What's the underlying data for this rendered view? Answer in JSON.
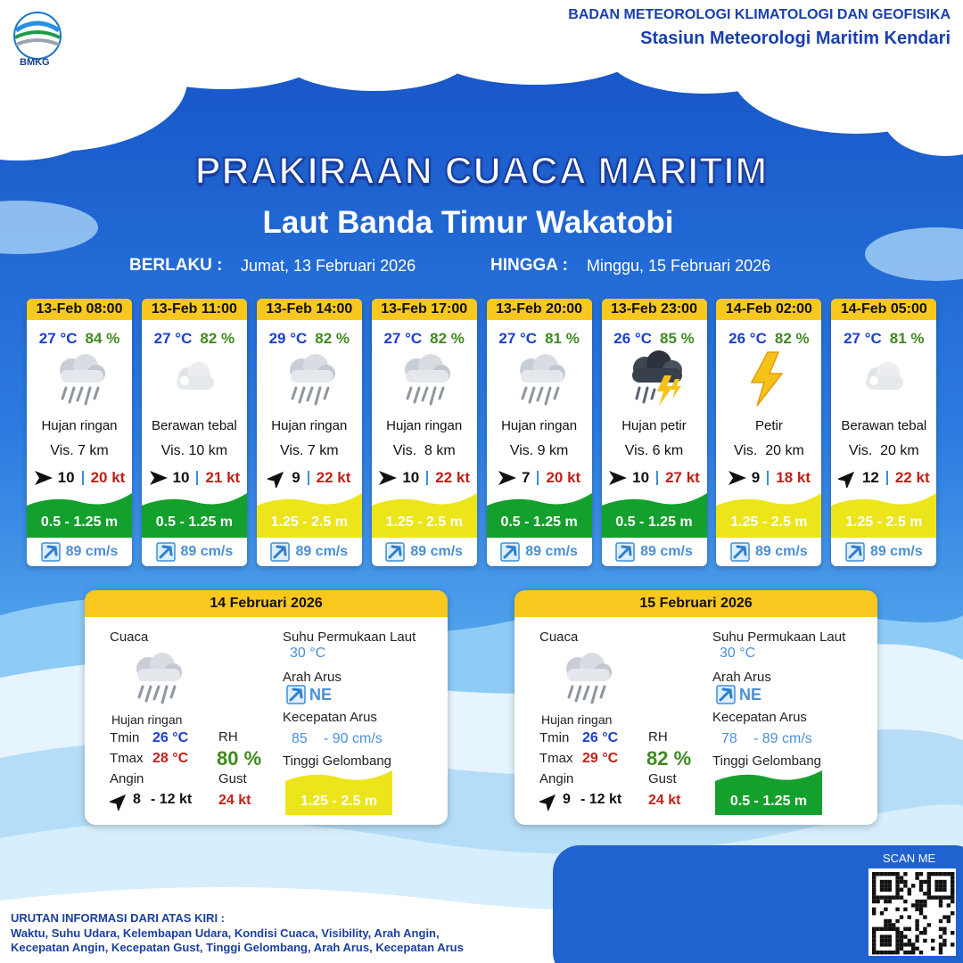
{
  "header": {
    "logo_text": "BMKG",
    "agency": "BADAN METEOROLOGI KLIMATOLOGI DAN GEOFISIKA",
    "station": "Stasiun Meteorologi Maritim Kendari"
  },
  "title": "PRAKIRAAN CUACA MARITIM",
  "subtitle": "Laut Banda Timur Wakatobi",
  "validity": {
    "from_label": "BERLAKU :",
    "from": "Jumat, 13 Februari 2026",
    "to_label": "HINGGA :",
    "to": "Minggu, 15 Februari 2026"
  },
  "forecasts": [
    {
      "time": "13-Feb 08:00",
      "temperature": "27 °C",
      "humidity": "84 %",
      "icon": "rain",
      "condition": "Hujan ringan",
      "visibility": "Vis. 7 km",
      "wind_direction": "E",
      "wind_speed": "10",
      "gust": "20 kt",
      "wave_height": "0.5 - 1.25 m",
      "wave_color": "#14a02c",
      "current_speed": "89 cm/s"
    },
    {
      "time": "13-Feb 11:00",
      "temperature": "27 °C",
      "humidity": "82 %",
      "icon": "cloud",
      "condition": "Berawan tebal",
      "visibility": "Vis. 10 km",
      "wind_direction": "E",
      "wind_speed": "10",
      "gust": "21 kt",
      "wave_height": "0.5 - 1.25 m",
      "wave_color": "#14a02c",
      "current_speed": "89 cm/s"
    },
    {
      "time": "13-Feb 14:00",
      "temperature": "29 °C",
      "humidity": "82 %",
      "icon": "rain",
      "condition": "Hujan ringan",
      "visibility": "Vis. 7 km",
      "wind_direction": "NE",
      "wind_speed": "9",
      "gust": "22 kt",
      "wave_height": "1.25 - 2.5 m",
      "wave_color": "#ece51a",
      "current_speed": "89 cm/s"
    },
    {
      "time": "13-Feb 17:00",
      "temperature": "27 °C",
      "humidity": "82 %",
      "icon": "rain",
      "condition": "Hujan ringan",
      "visibility": "Vis.  8 km",
      "wind_direction": "E",
      "wind_speed": "10",
      "gust": "22 kt",
      "wave_height": "1.25 - 2.5 m",
      "wave_color": "#ece51a",
      "current_speed": "89 cm/s"
    },
    {
      "time": "13-Feb 20:00",
      "temperature": "27 °C",
      "humidity": "81 %",
      "icon": "rain",
      "condition": "Hujan ringan",
      "visibility": "Vis. 9 km",
      "wind_direction": "E",
      "wind_speed": "7",
      "gust": "20 kt",
      "wave_height": "0.5 - 1.25 m",
      "wave_color": "#14a02c",
      "current_speed": "89 cm/s"
    },
    {
      "time": "13-Feb 23:00",
      "temperature": "26 °C",
      "humidity": "85 %",
      "icon": "storm",
      "condition": "Hujan petir",
      "visibility": "Vis. 6 km",
      "wind_direction": "E",
      "wind_speed": "10",
      "gust": "27 kt",
      "wave_height": "0.5 - 1.25 m",
      "wave_color": "#14a02c",
      "current_speed": "89 cm/s"
    },
    {
      "time": "14-Feb 02:00",
      "temperature": "26 °C",
      "humidity": "82 %",
      "icon": "lightning",
      "condition": "Petir",
      "visibility": "Vis.  20 km",
      "wind_direction": "E",
      "wind_speed": "9",
      "gust": "18 kt",
      "wave_height": "1.25 - 2.5 m",
      "wave_color": "#ece51a",
      "current_speed": "89 cm/s"
    },
    {
      "time": "14-Feb 05:00",
      "temperature": "27 °C",
      "humidity": "81 %",
      "icon": "cloud",
      "condition": "Berawan tebal",
      "visibility": "Vis.  20 km",
      "wind_direction": "NE",
      "wind_speed": "12",
      "gust": "22 kt",
      "wave_height": "1.25 - 2.5 m",
      "wave_color": "#ece51a",
      "current_speed": "89 cm/s"
    }
  ],
  "summary_labels": {
    "weather": "Cuaca",
    "tmin": "Tmin",
    "tmax": "Tmax",
    "wind": "Angin",
    "rh": "RH",
    "gust": "Gust",
    "sst": "Suhu Permukaan Laut",
    "current_direction": "Arah Arus",
    "current_speed": "Kecepatan Arus",
    "wave_height": "Tinggi Gelombang"
  },
  "summaries": [
    {
      "date": "14 Februari 2026",
      "icon": "rain",
      "condition": "Hujan ringan",
      "tmin": "26 °C",
      "tmax": "28 °C",
      "rh": "80 %",
      "wind_direction": "NE",
      "wind_min": "8",
      "wind_max": "- 12 kt",
      "gust": "24 kt",
      "sst": "30 °C",
      "current_direction": "NE",
      "current_min": "85",
      "current_max": "- 90 cm/s",
      "wave_height": "1.25 - 2.5 m",
      "wave_color": "#ece51a"
    },
    {
      "date": "15 Februari 2026",
      "icon": "rain",
      "condition": "Hujan ringan",
      "tmin": "26 °C",
      "tmax": "29 °C",
      "rh": "82 %",
      "wind_direction": "NE",
      "wind_min": "9",
      "wind_max": "- 12 kt",
      "gust": "24 kt",
      "sst": "30 °C",
      "current_direction": "NE",
      "current_min": "78",
      "current_max": "- 89 cm/s",
      "wave_height": "0.5 - 1.25 m",
      "wave_color": "#14a02c"
    }
  ],
  "footer": {
    "scan": "SCAN ME",
    "legend_title": "URUTAN INFORMASI DARI ATAS KIRI :",
    "legend_lines": [
      "Waktu, Suhu Udara, Kelembapan Udara, Kondisi Cuaca, Visibility, Arah Angin,",
      "Kecepatan Angin, Kecepatan Gust, Tinggi Gelombang, Arah Arus, Kecepatan Arus"
    ]
  }
}
